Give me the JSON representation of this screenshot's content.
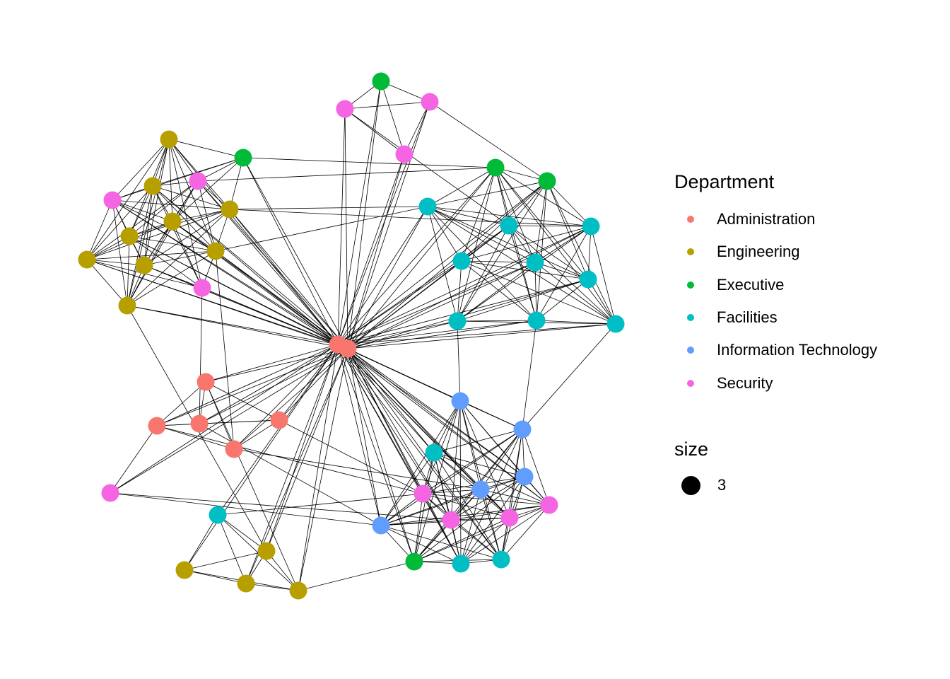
{
  "legend": {
    "department_title": "Department",
    "departments": [
      {
        "name": "Administration",
        "color": "#F8766D"
      },
      {
        "name": "Engineering",
        "color": "#B79F00"
      },
      {
        "name": "Executive",
        "color": "#00BA38"
      },
      {
        "name": "Facilities",
        "color": "#00BFC4"
      },
      {
        "name": "Information Technology",
        "color": "#619CFF"
      },
      {
        "name": "Security",
        "color": "#F564E3"
      }
    ],
    "size_title": "size",
    "size_value": "3"
  },
  "network": {
    "node_departments": [
      0,
      0,
      0,
      0,
      0,
      0,
      0,
      1,
      1,
      1,
      1,
      1,
      1,
      1,
      1,
      1,
      1,
      1,
      1,
      1,
      2,
      2,
      2,
      2,
      2,
      3,
      3,
      3,
      3,
      3,
      3,
      3,
      3,
      3,
      3,
      3,
      3,
      3,
      4,
      4,
      4,
      4,
      4,
      5,
      5,
      5,
      5,
      5,
      5,
      5,
      5,
      5,
      5,
      5
    ],
    "adjacency": {
      "0": [
        1,
        2,
        3,
        4,
        5,
        6,
        7,
        8,
        9,
        10,
        11,
        12,
        13,
        14,
        15,
        16,
        17,
        18,
        19,
        20,
        21,
        22,
        23,
        24,
        25,
        26,
        27,
        28,
        29,
        30,
        31,
        32,
        33,
        34,
        35,
        36,
        37,
        38,
        39,
        40,
        41,
        42,
        43,
        44,
        45,
        46,
        47,
        48,
        49,
        50,
        51,
        52,
        53
      ],
      "1": [
        2,
        3,
        4,
        5,
        6,
        8,
        9,
        10,
        11,
        12,
        13,
        14,
        15,
        16,
        18,
        19,
        20,
        21,
        22,
        23,
        24,
        25,
        26,
        27,
        28,
        29,
        30,
        31,
        32,
        33,
        34,
        36,
        37,
        38,
        39,
        40,
        41,
        42,
        43,
        44,
        45,
        46,
        47,
        48,
        49,
        50,
        51,
        52,
        53
      ],
      "2": [
        3,
        4,
        5,
        6,
        19
      ],
      "3": [
        4,
        5,
        6,
        49,
        50
      ],
      "4": [
        5,
        48,
        42
      ],
      "5": [
        6,
        50
      ],
      "6": [
        12,
        41
      ],
      "7": [
        8,
        9,
        10,
        11,
        12,
        13,
        14,
        15,
        21,
        46,
        47,
        48
      ],
      "8": [
        9,
        10,
        11,
        12,
        13,
        14,
        15,
        46,
        47,
        48,
        21
      ],
      "9": [
        10,
        11,
        12,
        13,
        14,
        15,
        21,
        46,
        47,
        25,
        27
      ],
      "10": [
        11,
        12,
        13,
        14,
        15,
        46,
        47,
        48
      ],
      "11": [
        12,
        13,
        14,
        15,
        46,
        47,
        48,
        21
      ],
      "12": [
        13,
        14,
        15,
        46,
        47,
        48,
        25
      ],
      "13": [
        14,
        15,
        46,
        47,
        48
      ],
      "14": [
        15,
        46,
        47,
        48
      ],
      "15": [
        46,
        47,
        16
      ],
      "16": [
        17,
        18,
        19,
        35
      ],
      "17": [
        18,
        19,
        35
      ],
      "18": [
        19,
        35
      ],
      "19": [
        35,
        24
      ],
      "20": [
        43,
        44,
        45
      ],
      "21": [
        22,
        46,
        47
      ],
      "22": [
        23,
        25,
        26,
        27,
        28,
        29,
        30,
        31,
        32,
        33,
        46
      ],
      "23": [
        25,
        26,
        27,
        28,
        29,
        30,
        31,
        32,
        33,
        44
      ],
      "25": [
        26,
        27,
        28,
        29,
        30,
        31,
        32,
        33
      ],
      "26": [
        27,
        28,
        29,
        30,
        31,
        32,
        33,
        43
      ],
      "27": [
        28,
        29,
        30,
        31,
        32,
        33
      ],
      "28": [
        29,
        30,
        31,
        32,
        33
      ],
      "29": [
        30,
        31,
        32,
        33
      ],
      "30": [
        31,
        32,
        33
      ],
      "31": [
        32,
        33,
        38
      ],
      "32": [
        33,
        39
      ],
      "33": [
        39
      ],
      "24": [
        34,
        36,
        37,
        38,
        39,
        40,
        41,
        42,
        50,
        51,
        52,
        53
      ],
      "34": [
        36,
        37,
        38,
        39,
        40,
        41,
        42,
        50,
        51,
        52,
        53
      ],
      "36": [
        37,
        38,
        39,
        40,
        41,
        42,
        50,
        51,
        52,
        53
      ],
      "37": [
        38,
        39,
        40,
        41,
        42,
        50,
        51,
        52,
        53
      ],
      "38": [
        39,
        40,
        41,
        42,
        50,
        51,
        52,
        53
      ],
      "39": [
        40,
        41,
        42,
        50,
        51,
        52,
        53
      ],
      "40": [
        41,
        42,
        50,
        51,
        52,
        53
      ],
      "41": [
        42,
        50,
        51,
        52,
        53
      ],
      "42": [
        50,
        51,
        52,
        53,
        49
      ],
      "43": [
        44,
        45
      ],
      "44": [
        45
      ],
      "49": [
        51
      ],
      "50": [
        51,
        52,
        53
      ],
      "51": [
        52,
        53
      ],
      "52": [
        53
      ],
      "35": [
        50
      ]
    }
  }
}
